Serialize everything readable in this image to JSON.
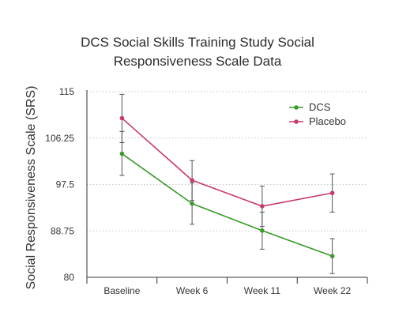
{
  "chart_data": {
    "type": "line",
    "title_lines": [
      "DCS Social Skills Training Study Social",
      "Responsiveness Scale Data"
    ],
    "xlabel": "",
    "ylabel": "Social Responsiveness  Scale (SRS)",
    "categories": [
      "Baseline",
      "Week 6",
      "Week 11",
      "Week 22"
    ],
    "ylim": [
      80,
      115
    ],
    "yticks": [
      80,
      88.75,
      97.5,
      106.25,
      115
    ],
    "ytick_labels": [
      "80",
      "88.75",
      "97.5",
      "106.25",
      "115"
    ],
    "grid": "horizontal dotted",
    "legend_position": "top-right",
    "series": [
      {
        "name": "DCS",
        "color": "#3a9a2a",
        "values": [
          103.3,
          93.9,
          88.8,
          84.0
        ],
        "error_low": [
          99.2,
          90.0,
          85.3,
          80.7
        ],
        "error_high": [
          107.5,
          97.8,
          92.3,
          87.3
        ]
      },
      {
        "name": "Placebo",
        "color": "#c83a6a",
        "values": [
          110.0,
          98.3,
          93.4,
          95.9
        ],
        "error_low": [
          105.4,
          94.5,
          89.6,
          92.3
        ],
        "error_high": [
          114.5,
          102.0,
          97.2,
          99.5
        ]
      }
    ]
  }
}
